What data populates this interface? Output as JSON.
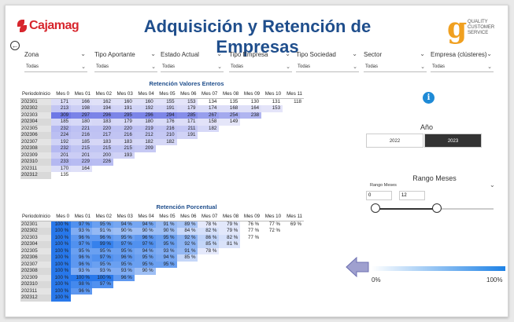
{
  "header": {
    "brand": "Cajamag",
    "title": "Adquisición y Retención de Empresas",
    "right_logo": {
      "mark": "g",
      "lines": [
        "QUALITY",
        "CUSTOMER",
        "SERVICE"
      ]
    }
  },
  "back_icon": "arrow-left-icon",
  "filters": [
    {
      "label": "Zona",
      "value": "Todas"
    },
    {
      "label": "Tipo Aportante",
      "value": "Todas"
    },
    {
      "label": "Estado Actual",
      "value": "Todas"
    },
    {
      "label": "Tipo Empresa",
      "value": "Todas"
    },
    {
      "label": "Tipo Sociedad",
      "value": "Todas"
    },
    {
      "label": "Sector",
      "value": "Todas"
    },
    {
      "label": "Empresa (clústeres)",
      "value": "Todas"
    }
  ],
  "retention_values": {
    "title": "Retención Valores Enteros",
    "headers": [
      "PeriodoInicio",
      "Mes 0",
      "Mes 01",
      "Mes 02",
      "Mes 03",
      "Mes 04",
      "Mes 05",
      "Mes 06",
      "Mes 07",
      "Mes 08",
      "Mes 09",
      "Mes 10",
      "Mes 11"
    ],
    "rows": [
      [
        "202301",
        "171",
        "166",
        "162",
        "160",
        "160",
        "155",
        "153",
        "134",
        "135",
        "130",
        "131",
        "118"
      ],
      [
        "202302",
        "213",
        "198",
        "194",
        "191",
        "192",
        "191",
        "179",
        "174",
        "168",
        "164",
        "153"
      ],
      [
        "202303",
        "309",
        "297",
        "296",
        "295",
        "296",
        "294",
        "285",
        "267",
        "254",
        "238"
      ],
      [
        "202304",
        "185",
        "180",
        "183",
        "179",
        "180",
        "176",
        "171",
        "158",
        "149"
      ],
      [
        "202305",
        "232",
        "221",
        "220",
        "220",
        "219",
        "216",
        "211",
        "182"
      ],
      [
        "202306",
        "224",
        "216",
        "217",
        "216",
        "212",
        "210",
        "191"
      ],
      [
        "202307",
        "192",
        "185",
        "183",
        "183",
        "182",
        "182"
      ],
      [
        "202308",
        "232",
        "215",
        "215",
        "215",
        "209"
      ],
      [
        "202309",
        "201",
        "201",
        "200",
        "193"
      ],
      [
        "202310",
        "233",
        "229",
        "226"
      ],
      [
        "202311",
        "170",
        "164"
      ],
      [
        "202312",
        "135"
      ]
    ]
  },
  "retention_pct": {
    "title": "Retención Porcentual",
    "headers": [
      "PeriodoInicio",
      "Mes 0",
      "Mes 01",
      "Mes 02",
      "Mes 03",
      "Mes 04",
      "Mes 05",
      "Mes 06",
      "Mes 07",
      "Mes 08",
      "Mes 09",
      "Mes 10",
      "Mes 11"
    ],
    "rows": [
      [
        "202301",
        "100 %",
        "97 %",
        "95 %",
        "94 %",
        "94 %",
        "91 %",
        "89 %",
        "78 %",
        "79 %",
        "76 %",
        "77 %",
        "69 %"
      ],
      [
        "202302",
        "100 %",
        "93 %",
        "91 %",
        "90 %",
        "90 %",
        "90 %",
        "84 %",
        "82 %",
        "79 %",
        "77 %",
        "72 %"
      ],
      [
        "202303",
        "100 %",
        "96 %",
        "96 %",
        "95 %",
        "96 %",
        "95 %",
        "92 %",
        "86 %",
        "82 %",
        "77 %"
      ],
      [
        "202304",
        "100 %",
        "97 %",
        "99 %",
        "97 %",
        "97 %",
        "95 %",
        "92 %",
        "85 %",
        "81 %"
      ],
      [
        "202305",
        "100 %",
        "95 %",
        "95 %",
        "95 %",
        "94 %",
        "93 %",
        "91 %",
        "78 %"
      ],
      [
        "202306",
        "100 %",
        "96 %",
        "97 %",
        "96 %",
        "95 %",
        "94 %",
        "85 %"
      ],
      [
        "202307",
        "100 %",
        "96 %",
        "95 %",
        "95 %",
        "95 %",
        "95 %"
      ],
      [
        "202308",
        "100 %",
        "93 %",
        "93 %",
        "93 %",
        "90 %"
      ],
      [
        "202309",
        "100 %",
        "100 %",
        "100 %",
        "96 %"
      ],
      [
        "202310",
        "100 %",
        "98 %",
        "97 %"
      ],
      [
        "202311",
        "100 %",
        "96 %"
      ],
      [
        "202312",
        "100 %"
      ]
    ]
  },
  "info_icon": "info-icon",
  "year": {
    "title": "Año",
    "options": [
      "2022",
      "2023"
    ],
    "selected": "2023"
  },
  "range": {
    "title": "Rango Meses",
    "label": "Rango Meses",
    "min": "0",
    "max": "12",
    "low": 0,
    "high": 12,
    "scale_max": 23
  },
  "legend": {
    "min_label": "0%",
    "max_label": "100%",
    "low_color": "#ffffff",
    "high_color": "#1e82e6"
  },
  "colors": {
    "accent": "#1f4e8c",
    "brand_red": "#d7262d",
    "brand_orange": "#f0a020"
  }
}
